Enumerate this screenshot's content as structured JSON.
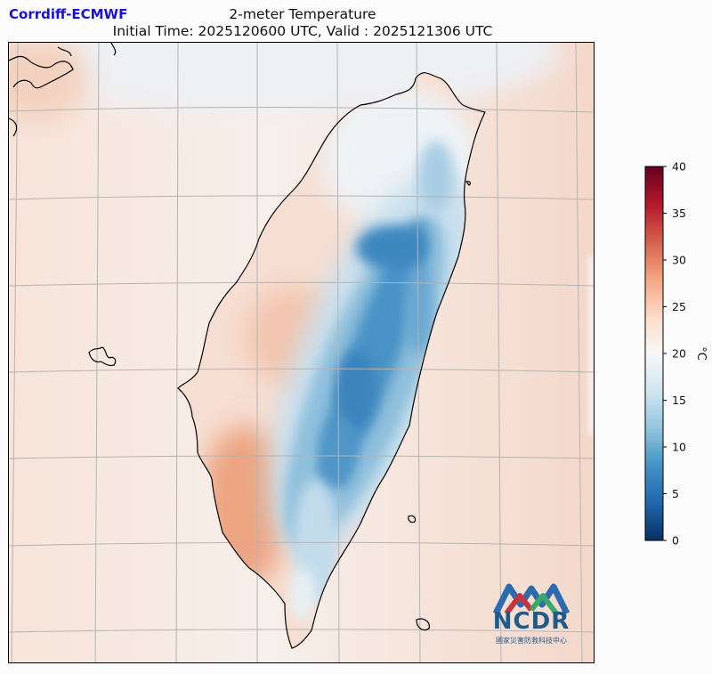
{
  "header": {
    "model_label": "Corrdiff-ECMWF",
    "title": "2-meter Temperature",
    "subtitle": "Initial Time: 2025120600 UTC, Valid : 2025121306 UTC"
  },
  "colorbar": {
    "unit_label": "°C",
    "min": 0,
    "max": 40,
    "ticks": [
      "0",
      "5",
      "10",
      "15",
      "20",
      "25",
      "30",
      "35",
      "40"
    ],
    "colors": [
      "#053061",
      "#2166ac",
      "#4393c3",
      "#92c5de",
      "#d1e5f0",
      "#f7f7f7",
      "#fddbc7",
      "#f4a582",
      "#d6604d",
      "#b2182b",
      "#67001f"
    ]
  },
  "map": {
    "background_color": "#f4d8ca",
    "west_sea_color": "#f8eee8",
    "mountain_color": "#3d87c0",
    "coastline_color": "#000000",
    "gridline_color": "#b4b4b4"
  },
  "logo": {
    "text": "NCDR",
    "subtext": "國家災害防救科技中心",
    "colors": [
      "#2b6cb0",
      "#c8313d",
      "#3aa868"
    ]
  }
}
